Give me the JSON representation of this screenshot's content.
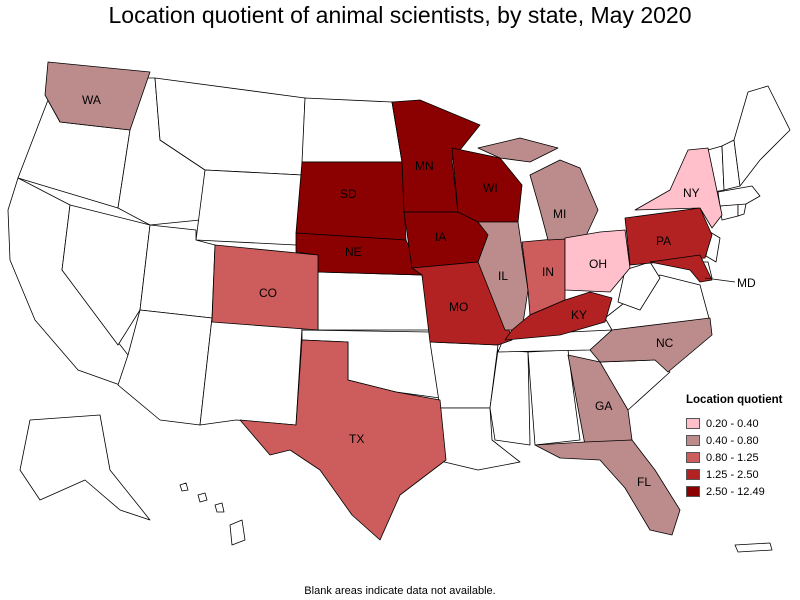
{
  "title": "Location quotient of animal scientists, by state, May 2020",
  "footnote": "Blank areas indicate data not available.",
  "legend": {
    "title": "Location quotient",
    "items": [
      {
        "label": "0.20 - 0.40",
        "color": "#ffc0cb"
      },
      {
        "label": "0.40 - 0.80",
        "color": "#bc8c8c"
      },
      {
        "label": "0.80 - 1.25",
        "color": "#cd5c5c"
      },
      {
        "label": "1.25 - 2.50",
        "color": "#b22222"
      },
      {
        "label": "2.50 - 12.49",
        "color": "#8b0000"
      }
    ]
  },
  "states": {
    "WA": {
      "label": "WA",
      "bin": 1
    },
    "SD": {
      "label": "SD",
      "bin": 4
    },
    "MN": {
      "label": "MN",
      "bin": 4
    },
    "NE": {
      "label": "NE",
      "bin": 4
    },
    "IA": {
      "label": "IA",
      "bin": 4
    },
    "WI": {
      "label": "WI",
      "bin": 4
    },
    "CO": {
      "label": "CO",
      "bin": 2
    },
    "TX": {
      "label": "TX",
      "bin": 2
    },
    "MO": {
      "label": "MO",
      "bin": 3
    },
    "IL": {
      "label": "IL",
      "bin": 1
    },
    "IN": {
      "label": "IN",
      "bin": 2
    },
    "MI": {
      "label": "MI",
      "bin": 1
    },
    "OH": {
      "label": "OH",
      "bin": 0
    },
    "KY": {
      "label": "KY",
      "bin": 3
    },
    "PA": {
      "label": "PA",
      "bin": 3
    },
    "NY": {
      "label": "NY",
      "bin": 0
    },
    "MD": {
      "label": "MD",
      "bin": 3
    },
    "NC": {
      "label": "NC",
      "bin": 1
    },
    "GA": {
      "label": "GA",
      "bin": 1
    },
    "FL": {
      "label": "FL",
      "bin": 1
    }
  }
}
